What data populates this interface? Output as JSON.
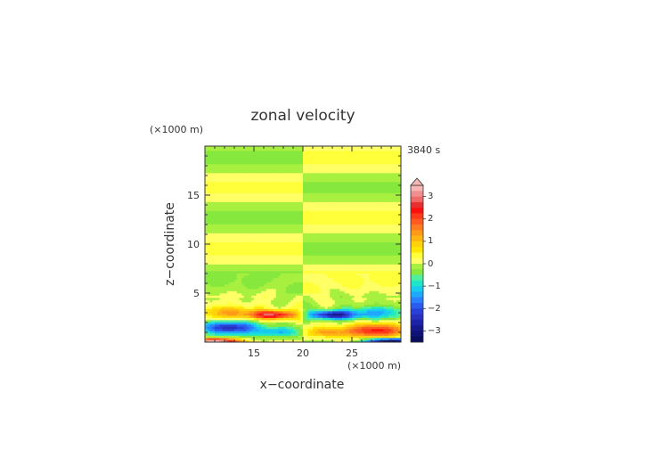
{
  "chart_data": {
    "type": "heatmap",
    "title": "zonal velocity",
    "time_label": "3840 s",
    "xlabel": "x−coordinate",
    "ylabel": "z−coordinate",
    "x_unit": "(×1000 m)",
    "y_unit": "(×1000 m)",
    "xlim": [
      10,
      30
    ],
    "ylim": [
      0,
      20
    ],
    "x_ticks": [
      15,
      20,
      25
    ],
    "y_ticks": [
      5,
      10,
      15
    ],
    "colorbar": {
      "label_values": [
        3,
        2,
        1,
        0,
        -1,
        -2,
        -3
      ],
      "labels": [
        "3",
        "2",
        "1",
        "0",
        "−1",
        "−2",
        "−3"
      ],
      "levels": [
        {
          "lo": 3.25,
          "hi": 3.5,
          "color": "#f7b6b6"
        },
        {
          "lo": 3.0,
          "hi": 3.25,
          "color": "#ef8f8f"
        },
        {
          "lo": 2.75,
          "hi": 3.0,
          "color": "#f06a6a"
        },
        {
          "lo": 2.5,
          "hi": 2.75,
          "color": "#e83030"
        },
        {
          "lo": 2.25,
          "hi": 2.5,
          "color": "#ff1010"
        },
        {
          "lo": 2.0,
          "hi": 2.25,
          "color": "#ff3a1a"
        },
        {
          "lo": 1.75,
          "hi": 2.0,
          "color": "#ff5a20"
        },
        {
          "lo": 1.5,
          "hi": 1.75,
          "color": "#ff7a20"
        },
        {
          "lo": 1.25,
          "hi": 1.5,
          "color": "#ff9a18"
        },
        {
          "lo": 1.0,
          "hi": 1.25,
          "color": "#ffb612"
        },
        {
          "lo": 0.75,
          "hi": 1.0,
          "color": "#ffd20a"
        },
        {
          "lo": 0.5,
          "hi": 0.75,
          "color": "#ffe600"
        },
        {
          "lo": 0.25,
          "hi": 0.5,
          "color": "#ffff3a"
        },
        {
          "lo": 0.0,
          "hi": 0.25,
          "color": "#ffff66"
        },
        {
          "lo": -0.25,
          "hi": 0.0,
          "color": "#a8f040"
        },
        {
          "lo": -0.5,
          "hi": -0.25,
          "color": "#86e83c"
        },
        {
          "lo": -0.75,
          "hi": -0.5,
          "color": "#4ef0a0"
        },
        {
          "lo": -1.0,
          "hi": -0.75,
          "color": "#20e6c8"
        },
        {
          "lo": -1.25,
          "hi": -1.0,
          "color": "#18ccee"
        },
        {
          "lo": -1.5,
          "hi": -1.25,
          "color": "#20a8ff"
        },
        {
          "lo": -1.75,
          "hi": -1.5,
          "color": "#2a80ff"
        },
        {
          "lo": -2.0,
          "hi": -1.75,
          "color": "#2a5cf0"
        },
        {
          "lo": -2.25,
          "hi": -2.0,
          "color": "#2b40d8"
        },
        {
          "lo": -2.5,
          "hi": -2.25,
          "color": "#2830c0"
        },
        {
          "lo": -2.75,
          "hi": -2.5,
          "color": "#1e22a8"
        },
        {
          "lo": -3.0,
          "hi": -2.75,
          "color": "#16188e"
        },
        {
          "lo": -3.25,
          "hi": -3.0,
          "color": "#101278"
        },
        {
          "lo": -3.5,
          "hi": -3.25,
          "color": "#0a0c60"
        }
      ]
    },
    "grid": false,
    "field_description": "Layered zonal velocity field: alternating positive/negative bands in z above ~6 km that switch sign across x=20 (about 0.3 in magnitude); strong near-surface jets below ~4 km, about +2.5 at x~17,z~2.8 and -2.5 at x~23,z~2.8, about -2 at x~12,z~1.5 and +2 at x~28,z~1.2, with a ring-like wave pattern centered at x=20."
  }
}
